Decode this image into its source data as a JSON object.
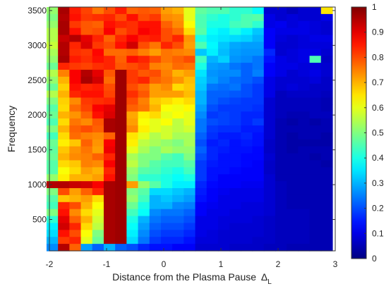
{
  "chart_data": {
    "type": "heatmap",
    "title": "",
    "xlabel": "Distance from the Plasma Pause",
    "xlabel_symbol": "Δ",
    "xlabel_subscript": "L",
    "ylabel": "Frequency",
    "xlim": [
      -2,
      3
    ],
    "ylim": [
      50,
      3550
    ],
    "x_ticks": [
      "-2",
      "-1",
      "0",
      "1",
      "2",
      "3"
    ],
    "x_tick_values": [
      -2,
      -1,
      0,
      1,
      2,
      3
    ],
    "y_ticks": [
      "500",
      "1000",
      "1500",
      "2000",
      "2500",
      "3000",
      "3500"
    ],
    "y_tick_values": [
      500,
      1000,
      1500,
      2000,
      2500,
      3000,
      3500
    ],
    "colorbar": {
      "range": [
        0,
        1
      ],
      "ticks": [
        "0",
        "0.1",
        "0.2",
        "0.3",
        "0.4",
        "0.5",
        "0.6",
        "0.7",
        "0.8",
        "0.9",
        "1"
      ],
      "tick_values": [
        0,
        0.1,
        0.2,
        0.3,
        0.4,
        0.5,
        0.6,
        0.7,
        0.8,
        0.9,
        1
      ],
      "colormap": "jet"
    },
    "x_bin_centers": [
      -1.95,
      -1.75,
      -1.55,
      -1.35,
      -1.15,
      -0.95,
      -0.75,
      -0.55,
      -0.35,
      -0.15,
      0.05,
      0.25,
      0.45,
      0.65,
      0.85,
      1.05,
      1.25,
      1.45,
      1.65,
      1.85,
      2.05,
      2.25,
      2.45,
      2.65,
      2.85
    ],
    "y_bin_centers": [
      3500,
      3400,
      3300,
      3200,
      3100,
      3000,
      2900,
      2800,
      2700,
      2600,
      2500,
      2400,
      2300,
      2200,
      2100,
      2000,
      1900,
      1800,
      1700,
      1600,
      1500,
      1400,
      1300,
      1200,
      1100,
      1000,
      900,
      800,
      700,
      600,
      500,
      400,
      300,
      200,
      100
    ],
    "values": [
      [
        0.52,
        0.96,
        0.85,
        0.81,
        0.76,
        0.8,
        0.85,
        0.78,
        0.79,
        0.78,
        0.72,
        0.7,
        0.6,
        0.47,
        0.45,
        0.45,
        0.42,
        0.42,
        0.38,
        0.08,
        0.08,
        0.06,
        0.08,
        0.08,
        0.65
      ],
      [
        0.5,
        0.95,
        0.86,
        0.82,
        0.83,
        0.84,
        0.8,
        0.86,
        0.8,
        0.82,
        0.74,
        0.73,
        0.6,
        0.45,
        0.42,
        0.4,
        0.42,
        0.45,
        0.46,
        0.1,
        0.08,
        0.09,
        0.08,
        0.08,
        0.1
      ],
      [
        0.52,
        0.96,
        0.82,
        0.79,
        0.78,
        0.86,
        0.84,
        0.83,
        0.86,
        0.86,
        0.78,
        0.74,
        0.62,
        0.45,
        0.4,
        0.4,
        0.44,
        0.45,
        0.42,
        0.1,
        0.11,
        0.09,
        0.1,
        0.09,
        0.08
      ],
      [
        0.55,
        0.96,
        0.86,
        0.79,
        0.8,
        0.88,
        0.8,
        0.83,
        0.88,
        0.86,
        0.8,
        0.77,
        0.66,
        0.46,
        0.38,
        0.36,
        0.4,
        0.36,
        0.32,
        0.12,
        0.1,
        0.1,
        0.1,
        0.09,
        0.08
      ],
      [
        0.55,
        0.93,
        0.95,
        0.9,
        0.84,
        0.78,
        0.84,
        0.88,
        0.84,
        0.85,
        0.8,
        0.84,
        0.73,
        0.4,
        0.36,
        0.35,
        0.34,
        0.33,
        0.3,
        0.12,
        0.09,
        0.08,
        0.09,
        0.1,
        0.1
      ],
      [
        0.57,
        0.95,
        0.84,
        0.91,
        0.82,
        0.8,
        0.86,
        0.92,
        0.8,
        0.76,
        0.84,
        0.8,
        0.72,
        0.45,
        0.37,
        0.32,
        0.29,
        0.28,
        0.28,
        0.12,
        0.08,
        0.08,
        0.09,
        0.09,
        0.09
      ],
      [
        0.54,
        0.95,
        0.83,
        0.82,
        0.87,
        0.77,
        0.77,
        0.78,
        0.75,
        0.72,
        0.76,
        0.75,
        0.74,
        0.32,
        0.36,
        0.31,
        0.28,
        0.27,
        0.27,
        0.16,
        0.08,
        0.09,
        0.1,
        0.1,
        0.08
      ],
      [
        0.52,
        0.96,
        0.85,
        0.83,
        0.86,
        0.84,
        0.78,
        0.86,
        0.84,
        0.8,
        0.76,
        0.78,
        0.8,
        0.44,
        0.3,
        0.33,
        0.27,
        0.26,
        0.24,
        0.14,
        0.1,
        0.09,
        0.1,
        0.45,
        0.07
      ],
      [
        0.48,
        0.84,
        0.82,
        0.81,
        0.83,
        0.84,
        0.79,
        0.8,
        0.82,
        0.75,
        0.74,
        0.77,
        0.76,
        0.4,
        0.28,
        0.27,
        0.24,
        0.22,
        0.24,
        0.12,
        0.1,
        0.1,
        0.09,
        0.09,
        0.08
      ],
      [
        0.55,
        0.75,
        0.88,
        0.95,
        0.9,
        0.79,
        0.97,
        0.82,
        0.79,
        0.8,
        0.75,
        0.7,
        0.72,
        0.35,
        0.27,
        0.26,
        0.26,
        0.22,
        0.25,
        0.12,
        0.1,
        0.08,
        0.09,
        0.1,
        0.08
      ],
      [
        0.52,
        0.7,
        0.88,
        0.96,
        0.92,
        0.77,
        0.97,
        0.82,
        0.84,
        0.78,
        0.76,
        0.73,
        0.69,
        0.33,
        0.28,
        0.25,
        0.23,
        0.22,
        0.2,
        0.1,
        0.08,
        0.08,
        0.08,
        0.09,
        0.07
      ],
      [
        0.48,
        0.67,
        0.86,
        0.84,
        0.85,
        0.8,
        0.97,
        0.8,
        0.77,
        0.72,
        0.74,
        0.66,
        0.68,
        0.32,
        0.24,
        0.23,
        0.24,
        0.2,
        0.18,
        0.1,
        0.08,
        0.09,
        0.08,
        0.07,
        0.07
      ],
      [
        0.55,
        0.7,
        0.84,
        0.86,
        0.86,
        0.81,
        0.97,
        0.83,
        0.79,
        0.72,
        0.72,
        0.72,
        0.69,
        0.3,
        0.22,
        0.22,
        0.21,
        0.2,
        0.18,
        0.1,
        0.06,
        0.07,
        0.07,
        0.07,
        0.06
      ],
      [
        0.5,
        0.67,
        0.74,
        0.82,
        0.83,
        0.84,
        0.97,
        0.8,
        0.75,
        0.68,
        0.66,
        0.64,
        0.66,
        0.3,
        0.22,
        0.2,
        0.19,
        0.18,
        0.18,
        0.08,
        0.06,
        0.06,
        0.06,
        0.06,
        0.05
      ],
      [
        0.46,
        0.66,
        0.77,
        0.81,
        0.88,
        0.9,
        0.97,
        0.78,
        0.76,
        0.7,
        0.62,
        0.61,
        0.63,
        0.28,
        0.2,
        0.18,
        0.18,
        0.18,
        0.17,
        0.08,
        0.06,
        0.06,
        0.06,
        0.06,
        0.05
      ],
      [
        0.48,
        0.7,
        0.73,
        0.78,
        0.86,
        0.91,
        0.97,
        0.71,
        0.64,
        0.66,
        0.6,
        0.62,
        0.6,
        0.26,
        0.18,
        0.19,
        0.18,
        0.16,
        0.16,
        0.08,
        0.06,
        0.05,
        0.05,
        0.06,
        0.06
      ],
      [
        0.45,
        0.66,
        0.76,
        0.74,
        0.79,
        0.96,
        0.97,
        0.72,
        0.62,
        0.6,
        0.62,
        0.56,
        0.6,
        0.24,
        0.2,
        0.19,
        0.18,
        0.16,
        0.18,
        0.08,
        0.05,
        0.04,
        0.05,
        0.04,
        0.05
      ],
      [
        0.5,
        0.7,
        0.78,
        0.8,
        0.78,
        0.96,
        0.97,
        0.74,
        0.64,
        0.6,
        0.58,
        0.56,
        0.58,
        0.24,
        0.18,
        0.17,
        0.17,
        0.15,
        0.15,
        0.08,
        0.05,
        0.05,
        0.05,
        0.05,
        0.05
      ],
      [
        0.44,
        0.66,
        0.77,
        0.75,
        0.74,
        0.78,
        0.97,
        0.65,
        0.6,
        0.55,
        0.58,
        0.54,
        0.54,
        0.22,
        0.17,
        0.15,
        0.15,
        0.16,
        0.14,
        0.08,
        0.05,
        0.04,
        0.05,
        0.05,
        0.04
      ],
      [
        0.48,
        0.64,
        0.68,
        0.78,
        0.73,
        0.88,
        0.97,
        0.64,
        0.56,
        0.54,
        0.52,
        0.5,
        0.54,
        0.2,
        0.15,
        0.16,
        0.14,
        0.15,
        0.14,
        0.07,
        0.05,
        0.04,
        0.04,
        0.04,
        0.04
      ],
      [
        0.47,
        0.68,
        0.73,
        0.76,
        0.72,
        0.89,
        0.97,
        0.6,
        0.54,
        0.5,
        0.54,
        0.52,
        0.52,
        0.22,
        0.16,
        0.15,
        0.14,
        0.14,
        0.13,
        0.07,
        0.05,
        0.04,
        0.05,
        0.05,
        0.05
      ],
      [
        0.48,
        0.7,
        0.74,
        0.75,
        0.78,
        0.84,
        0.97,
        0.54,
        0.5,
        0.5,
        0.46,
        0.44,
        0.5,
        0.2,
        0.16,
        0.14,
        0.14,
        0.13,
        0.13,
        0.08,
        0.05,
        0.05,
        0.05,
        0.04,
        0.05
      ],
      [
        0.46,
        0.66,
        0.68,
        0.75,
        0.74,
        0.88,
        0.97,
        0.56,
        0.5,
        0.46,
        0.44,
        0.44,
        0.46,
        0.18,
        0.15,
        0.14,
        0.14,
        0.13,
        0.12,
        0.07,
        0.05,
        0.05,
        0.05,
        0.05,
        0.04
      ],
      [
        0.46,
        0.62,
        0.66,
        0.72,
        0.7,
        0.84,
        0.97,
        0.52,
        0.46,
        0.45,
        0.42,
        0.4,
        0.44,
        0.18,
        0.14,
        0.14,
        0.13,
        0.12,
        0.12,
        0.07,
        0.05,
        0.05,
        0.05,
        0.05,
        0.05
      ],
      [
        0.52,
        0.64,
        0.7,
        0.7,
        0.72,
        0.86,
        0.97,
        0.5,
        0.42,
        0.42,
        0.4,
        0.38,
        0.4,
        0.18,
        0.14,
        0.12,
        0.12,
        0.12,
        0.12,
        0.08,
        0.05,
        0.05,
        0.05,
        0.05,
        0.05
      ],
      [
        0.95,
        0.95,
        0.93,
        0.92,
        0.88,
        0.96,
        0.97,
        0.72,
        0.52,
        0.46,
        0.4,
        0.36,
        0.36,
        0.16,
        0.13,
        0.12,
        0.12,
        0.11,
        0.11,
        0.08,
        0.06,
        0.05,
        0.05,
        0.05,
        0.05
      ],
      [
        0.5,
        0.8,
        0.72,
        0.78,
        0.84,
        0.96,
        0.97,
        0.5,
        0.46,
        0.34,
        0.34,
        0.32,
        0.3,
        0.15,
        0.12,
        0.11,
        0.1,
        0.1,
        0.1,
        0.08,
        0.06,
        0.05,
        0.05,
        0.05,
        0.05
      ],
      [
        0.46,
        0.68,
        0.7,
        0.72,
        0.66,
        0.96,
        0.97,
        0.52,
        0.44,
        0.3,
        0.32,
        0.3,
        0.28,
        0.14,
        0.12,
        0.1,
        0.1,
        0.1,
        0.1,
        0.08,
        0.06,
        0.05,
        0.05,
        0.05,
        0.05
      ],
      [
        0.44,
        0.84,
        0.8,
        0.7,
        0.62,
        0.96,
        0.97,
        0.48,
        0.4,
        0.3,
        0.3,
        0.26,
        0.25,
        0.12,
        0.11,
        0.1,
        0.1,
        0.09,
        0.09,
        0.08,
        0.06,
        0.05,
        0.05,
        0.05,
        0.05
      ],
      [
        0.5,
        0.86,
        0.74,
        0.66,
        0.6,
        0.96,
        0.97,
        0.44,
        0.38,
        0.26,
        0.24,
        0.24,
        0.22,
        0.12,
        0.1,
        0.1,
        0.09,
        0.09,
        0.09,
        0.08,
        0.06,
        0.06,
        0.06,
        0.05,
        0.05
      ],
      [
        0.42,
        0.9,
        0.78,
        0.7,
        0.58,
        0.96,
        0.97,
        0.4,
        0.3,
        0.24,
        0.22,
        0.22,
        0.2,
        0.1,
        0.1,
        0.09,
        0.09,
        0.09,
        0.08,
        0.07,
        0.06,
        0.06,
        0.06,
        0.05,
        0.05
      ],
      [
        0.36,
        0.92,
        0.84,
        0.66,
        0.56,
        0.96,
        0.97,
        0.38,
        0.28,
        0.22,
        0.2,
        0.2,
        0.18,
        0.1,
        0.1,
        0.09,
        0.08,
        0.08,
        0.08,
        0.07,
        0.06,
        0.06,
        0.06,
        0.05,
        0.05
      ],
      [
        0.34,
        0.86,
        0.8,
        0.62,
        0.5,
        0.96,
        0.97,
        0.36,
        0.26,
        0.2,
        0.18,
        0.18,
        0.16,
        0.1,
        0.09,
        0.08,
        0.08,
        0.08,
        0.08,
        0.07,
        0.06,
        0.06,
        0.06,
        0.05,
        0.05
      ],
      [
        0.3,
        0.82,
        0.84,
        0.6,
        0.48,
        0.96,
        0.97,
        0.34,
        0.24,
        0.18,
        0.16,
        0.16,
        0.14,
        0.09,
        0.09,
        0.08,
        0.08,
        0.08,
        0.07,
        0.07,
        0.06,
        0.06,
        0.06,
        0.05,
        0.05
      ],
      [
        0.26,
        0.95,
        0.78,
        0.28,
        0.22,
        0.3,
        0.22,
        0.2,
        0.16,
        0.14,
        0.14,
        0.12,
        0.12,
        0.08,
        0.08,
        0.08,
        0.07,
        0.07,
        0.07,
        0.06,
        0.06,
        0.05,
        0.05,
        0.05,
        0.05
      ]
    ]
  }
}
